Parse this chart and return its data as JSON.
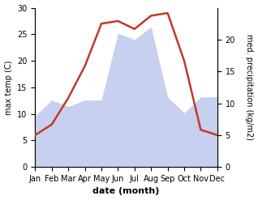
{
  "months": [
    "Jan",
    "Feb",
    "Mar",
    "Apr",
    "May",
    "Jun",
    "Jul",
    "Aug",
    "Sep",
    "Oct",
    "Nov",
    "Dec"
  ],
  "temperature": [
    6,
    8,
    13,
    19,
    27,
    27.5,
    26,
    28.5,
    29,
    20,
    7,
    6
  ],
  "precipitation": [
    8,
    10.5,
    9.5,
    10.5,
    10.5,
    21,
    20,
    22,
    11,
    8.5,
    11,
    11
  ],
  "temp_color": "#c0392b",
  "precip_fill_color": "#c8d0f0",
  "temp_ylim": [
    0,
    30
  ],
  "precip_ylim": [
    0,
    25
  ],
  "ylabel_left": "max temp (C)",
  "ylabel_right": "med. precipitation (kg/m2)",
  "xlabel": "date (month)",
  "right_yticks": [
    0,
    5,
    10,
    15,
    20
  ],
  "right_yticklabels": [
    "0",
    "5",
    "10",
    "15",
    "20"
  ],
  "left_yticks": [
    0,
    5,
    10,
    15,
    20,
    25,
    30
  ],
  "left_yticklabels": [
    "0",
    "5",
    "10",
    "15",
    "20",
    "25",
    "30"
  ]
}
